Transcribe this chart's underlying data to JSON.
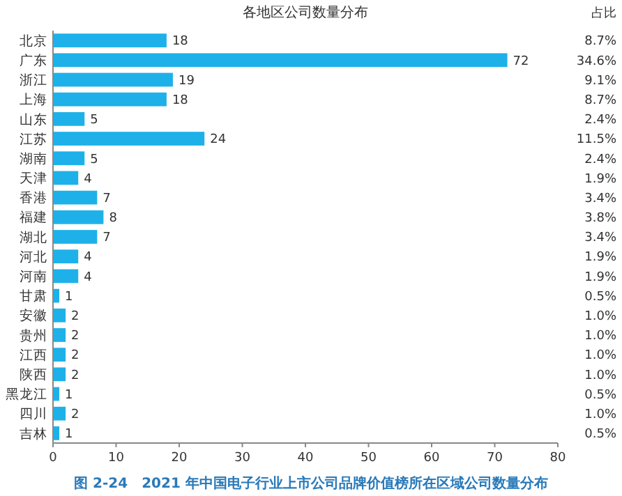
{
  "chart_data": {
    "type": "bar",
    "orientation": "horizontal",
    "title": "各地区公司数量分布",
    "categories": [
      "北京",
      "广东",
      "浙江",
      "上海",
      "山东",
      "江苏",
      "湖南",
      "天津",
      "香港",
      "福建",
      "湖北",
      "河北",
      "河南",
      "甘肃",
      "安徽",
      "贵州",
      "江西",
      "陕西",
      "黑龙江",
      "四川",
      "吉林"
    ],
    "values": [
      18,
      72,
      19,
      18,
      5,
      24,
      5,
      4,
      7,
      8,
      7,
      4,
      4,
      1,
      2,
      2,
      2,
      2,
      1,
      2,
      1
    ],
    "color": "#1eb1e9",
    "data_labels": true,
    "xlim": [
      0,
      80
    ],
    "xticks": [
      0,
      10,
      20,
      30,
      40,
      50,
      60,
      70,
      80
    ],
    "annotations": [
      "占比",
      "8.7%",
      "34.6%",
      "9.1%",
      "8.7%",
      "2.4%",
      "11.5%",
      "2.4%",
      "1.9%",
      "3.4%",
      "3.8%",
      "3.4%",
      "1.9%",
      "1.9%",
      "0.5%",
      "1.0%",
      "1.0%",
      "1.0%",
      "1.0%",
      "0.5%",
      "1.0%",
      "0.5%",
      "图 2-24　2021 年中国电子行业上市公司品牌价值榜所在区域公司数量分布"
    ]
  }
}
